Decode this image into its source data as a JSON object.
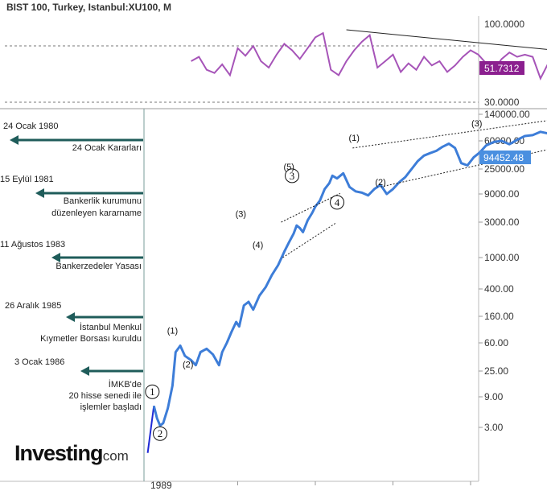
{
  "chart_data": [
    {
      "type": "line",
      "panel": "rsi-oscillator",
      "title": "BIST 100, Turkey, Istanbul:XU100, M",
      "y_ticks": [
        "100.0000",
        "30.0000"
      ],
      "current_value": 51.7312,
      "current_label": "51.7312",
      "levels": [
        70,
        30
      ],
      "ylim": [
        30,
        100
      ],
      "x": [
        1991.0,
        1991.5,
        1992.0,
        1992.5,
        1993.0,
        1993.5,
        1994.0,
        1994.5,
        1995.0,
        1995.5,
        1996.0,
        1996.5,
        1997.0,
        1997.5,
        1998.0,
        1998.5,
        1999.0,
        1999.5,
        2000.0,
        2000.5,
        2001.0,
        2001.5,
        2002.0,
        2002.5,
        2003.0,
        2003.5,
        2004.0,
        2004.5,
        2005.0,
        2005.5,
        2006.0,
        2006.5,
        2007.0,
        2007.5,
        2008.0,
        2008.5,
        2009.0,
        2009.5,
        2010.0,
        2010.5,
        2011.0,
        2011.5,
        2012.0,
        2012.5,
        2013.0,
        2013.5,
        2014.0,
        2014.5,
        2015.0,
        2015.5,
        2016.0,
        2016.5,
        2017.0,
        2017.5,
        2018.0,
        2018.5,
        2019.0,
        2019.5,
        2020.0,
        2020.5
      ],
      "values": [
        68,
        72,
        60,
        57,
        65,
        55,
        80,
        73,
        82,
        68,
        62,
        74,
        84,
        78,
        70,
        80,
        90,
        94,
        60,
        55,
        68,
        78,
        86,
        92,
        62,
        68,
        74,
        58,
        66,
        60,
        72,
        64,
        68,
        58,
        64,
        72,
        78,
        74,
        66,
        60,
        70,
        76,
        72,
        74,
        72,
        52,
        66,
        50,
        62,
        56,
        70,
        56,
        64,
        60,
        62,
        55,
        65,
        58,
        58,
        52
      ],
      "trendline": {
        "x": [
          2001.0,
          2018.8
        ],
        "y": [
          97,
          72
        ]
      }
    },
    {
      "type": "line",
      "panel": "price",
      "scale": "log",
      "y_ticks": [
        "140000.00",
        "60000.00",
        "25000.00",
        "9000.00",
        "3000.00",
        "1000.00",
        "400.00",
        "160.00",
        "60.00",
        "25.00",
        "9.00",
        "3.00"
      ],
      "x_tick_labels": [
        "1989"
      ],
      "current_value": 94452.48,
      "current_label": "94452.48",
      "series_main": {
        "x": [
          1988.6,
          1988.8,
          1989.0,
          1989.2,
          1989.5,
          1989.8,
          1990.0,
          1990.3,
          1990.6,
          1991.0,
          1991.3,
          1991.6,
          1992.0,
          1992.4,
          1992.8,
          1993.0,
          1993.3,
          1993.6,
          1993.9,
          1994.1,
          1994.4,
          1994.7,
          1995.0,
          1995.4,
          1995.8,
          1996.2,
          1996.6,
          1997.0,
          1997.3,
          1997.6,
          1997.8,
          1998.0,
          1998.2,
          1998.5,
          1998.8,
          1999.0,
          1999.3,
          1999.6,
          1999.9,
          2000.1,
          2000.4,
          2000.8,
          2001.2,
          2001.6,
          2002.0,
          2002.4,
          2002.8,
          2003.2,
          2003.6,
          2004.0,
          2004.4,
          2004.8,
          2005.2,
          2005.6,
          2006.0,
          2006.4,
          2006.8,
          2007.2,
          2007.6,
          2008.0,
          2008.4,
          2008.8,
          2009.2,
          2009.6,
          2010.0,
          2010.5,
          2011.0,
          2011.5,
          2012.0,
          2012.5,
          2013.0,
          2013.5,
          2014.0,
          2014.5,
          2015.0,
          2015.5,
          2016.0,
          2016.5,
          2017.0,
          2017.5,
          2018.0,
          2018.5,
          2019.0,
          2019.5,
          2020.0,
          2020.5
        ],
        "values": [
          6.5,
          4.2,
          3.2,
          3.5,
          6,
          14,
          45,
          55,
          40,
          35,
          30,
          45,
          50,
          42,
          30,
          45,
          60,
          90,
          130,
          110,
          230,
          260,
          200,
          320,
          420,
          600,
          800,
          1200,
          1600,
          2100,
          2700,
          2500,
          2200,
          3200,
          4300,
          5500,
          7000,
          11000,
          14000,
          19000,
          17000,
          21000,
          12000,
          10000,
          9500,
          8500,
          11000,
          13000,
          9000,
          11000,
          14500,
          18000,
          25000,
          32000,
          38000,
          41000,
          44000,
          50000,
          55000,
          48000,
          30000,
          28000,
          36000,
          42000,
          52000,
          58000,
          60000,
          54000,
          62000,
          70000,
          72000,
          80000,
          76000,
          82000,
          78000,
          85000,
          88000,
          92000,
          105000,
          118000,
          110000,
          96000,
          100000,
          108000,
          94452,
          94452
        ]
      },
      "series_intro": {
        "x": [
          1988.2,
          1988.6
        ],
        "values": [
          1.2,
          6.5
        ]
      },
      "annotations": [
        {
          "date": "24 Ocak 1980",
          "text": "24 Ocak Kararları"
        },
        {
          "date": "15 Eylül 1981",
          "text": "Bankerlik kurumunu düzenleyen kararname"
        },
        {
          "date": "11 Ağustos 1983",
          "text": "Bankerzedeler Yasası"
        },
        {
          "date": "26 Aralık 1985",
          "text": "İstanbul Menkul Kıymetler Borsası kuruldu"
        },
        {
          "date": "3 Ocak 1986",
          "text": "İMKB'de 20 hisse senedi ile işlemler başladı"
        }
      ],
      "wave_labels": {
        "circled": [
          "1",
          "2",
          "3",
          "4",
          "5"
        ],
        "sub": [
          "(1)",
          "(2)",
          "(3)",
          "(4)",
          "(5)"
        ]
      },
      "annotation_lines": {
        "date": [
          "24 Ocak 1980",
          "15 Eylül 1981",
          "11 Ağustos 1983",
          "26 Aralık 1985",
          "3 Ocak 1986"
        ],
        "text": [
          [
            "24 Ocak Kararları"
          ],
          [
            "Bankerlik kurumunu",
            "düzenleyen kararname"
          ],
          [
            "Bankerzedeler Yasası"
          ],
          [
            "İstanbul Menkul",
            "Kıymetler Borsası kuruldu"
          ],
          [
            "İMKB'de",
            "20 hisse senedi ile",
            "işlemler başladı"
          ]
        ]
      },
      "watermark": {
        "logo": "Investing",
        "suffix": ".com"
      }
    }
  ],
  "colors": {
    "rsi_line": "#a654b8",
    "rsi_badge": "#8b1f8f",
    "price_line": "#3d7dd8",
    "price_badge": "#4a8fe0",
    "intro_line": "#1f2ad6",
    "arrow": "#1f5c5a"
  }
}
